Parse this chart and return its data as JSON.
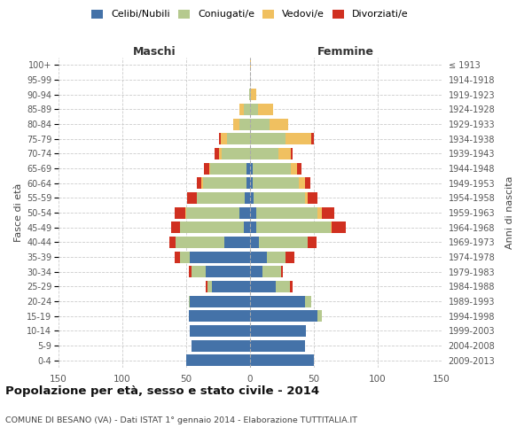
{
  "age_groups": [
    "0-4",
    "5-9",
    "10-14",
    "15-19",
    "20-24",
    "25-29",
    "30-34",
    "35-39",
    "40-44",
    "45-49",
    "50-54",
    "55-59",
    "60-64",
    "65-69",
    "70-74",
    "75-79",
    "80-84",
    "85-89",
    "90-94",
    "95-99",
    "100+"
  ],
  "birth_years": [
    "2009-2013",
    "2004-2008",
    "1999-2003",
    "1994-1998",
    "1989-1993",
    "1984-1988",
    "1979-1983",
    "1974-1978",
    "1969-1973",
    "1964-1968",
    "1959-1963",
    "1954-1958",
    "1949-1953",
    "1944-1948",
    "1939-1943",
    "1934-1938",
    "1929-1933",
    "1924-1928",
    "1919-1923",
    "1914-1918",
    "≤ 1913"
  ],
  "males": {
    "celibi": [
      50,
      46,
      47,
      48,
      47,
      30,
      35,
      47,
      20,
      5,
      8,
      4,
      3,
      3,
      0,
      0,
      0,
      0,
      0,
      0,
      0
    ],
    "coniugati": [
      0,
      0,
      0,
      0,
      1,
      3,
      11,
      8,
      38,
      50,
      42,
      38,
      34,
      28,
      22,
      18,
      8,
      5,
      1,
      0,
      0
    ],
    "vedovi": [
      0,
      0,
      0,
      0,
      0,
      0,
      0,
      0,
      0,
      0,
      1,
      0,
      1,
      1,
      2,
      5,
      5,
      3,
      0,
      0,
      0
    ],
    "divorziati": [
      0,
      0,
      0,
      0,
      0,
      2,
      2,
      4,
      5,
      7,
      8,
      7,
      4,
      4,
      4,
      1,
      0,
      0,
      0,
      0,
      0
    ]
  },
  "females": {
    "nubili": [
      50,
      43,
      44,
      53,
      43,
      20,
      10,
      13,
      7,
      5,
      5,
      3,
      2,
      2,
      0,
      0,
      0,
      0,
      0,
      0,
      0
    ],
    "coniugate": [
      0,
      0,
      0,
      3,
      5,
      11,
      14,
      15,
      38,
      58,
      48,
      40,
      36,
      30,
      22,
      28,
      15,
      6,
      1,
      0,
      0
    ],
    "vedove": [
      0,
      0,
      0,
      0,
      0,
      0,
      0,
      0,
      0,
      1,
      3,
      2,
      5,
      5,
      10,
      20,
      15,
      12,
      4,
      0,
      1
    ],
    "divorziate": [
      0,
      0,
      0,
      0,
      0,
      2,
      2,
      7,
      7,
      11,
      10,
      8,
      4,
      3,
      1,
      2,
      0,
      0,
      0,
      0,
      0
    ]
  },
  "colors": {
    "celibi": "#4472a8",
    "coniugati": "#b5c98e",
    "vedovi": "#f0c060",
    "divorziati": "#d03020"
  },
  "xlim": 150,
  "title": "Popolazione per età, sesso e stato civile - 2014",
  "subtitle": "COMUNE DI BESANO (VA) - Dati ISTAT 1° gennaio 2014 - Elaborazione TUTTITALIA.IT",
  "ylabel": "Fasce di età",
  "ylabel_right": "Anni di nascita",
  "xlabel_maschi": "Maschi",
  "xlabel_femmine": "Femmine",
  "legend_labels": [
    "Celibi/Nubili",
    "Coniugati/e",
    "Vedovi/e",
    "Divorziati/e"
  ],
  "xticks": [
    150,
    100,
    50,
    0,
    50,
    100,
    150
  ]
}
